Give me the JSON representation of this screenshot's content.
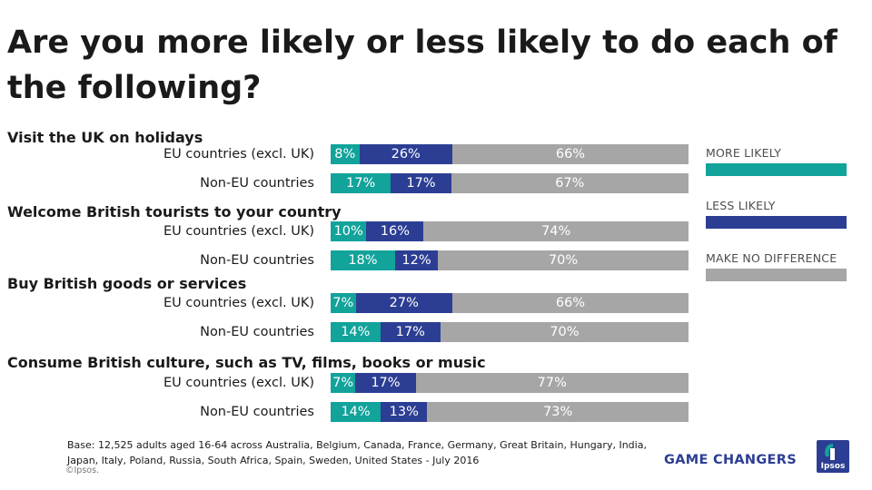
{
  "title": "Are you more likely or less likely to do each of the following?",
  "colors": {
    "more_likely": "#12a39b",
    "less_likely": "#2c3e93",
    "no_difference": "#a6a6a6"
  },
  "chart_data": {
    "type": "bar",
    "orientation": "horizontal",
    "stacked": true,
    "title": "Are you more likely or less likely to do each of the following?",
    "series": [
      {
        "name": "MORE LIKELY",
        "values": [
          8,
          17,
          10,
          18,
          7,
          14,
          7,
          14
        ]
      },
      {
        "name": "LESS LIKELY",
        "values": [
          26,
          17,
          16,
          12,
          27,
          17,
          17,
          13
        ]
      },
      {
        "name": "MAKE NO DIFFERENCE",
        "values": [
          66,
          67,
          74,
          70,
          66,
          70,
          77,
          73
        ]
      }
    ],
    "legend_position": "right",
    "groups": [
      {
        "title": "Visit the UK on holidays",
        "rows": [
          {
            "label": "EU countries (excl. UK)",
            "more": 8,
            "less": 26,
            "none": 66
          },
          {
            "label": "Non-EU countries",
            "more": 17,
            "less": 17,
            "none": 67
          }
        ]
      },
      {
        "title": "Welcome British tourists to your country",
        "rows": [
          {
            "label": "EU countries (excl. UK)",
            "more": 10,
            "less": 16,
            "none": 74
          },
          {
            "label": "Non-EU countries",
            "more": 18,
            "less": 12,
            "none": 70
          }
        ]
      },
      {
        "title": "Buy British goods or services",
        "rows": [
          {
            "label": "EU countries (excl. UK)",
            "more": 7,
            "less": 27,
            "none": 66
          },
          {
            "label": "Non-EU countries",
            "more": 14,
            "less": 17,
            "none": 70
          }
        ]
      },
      {
        "title": "Consume British culture, such as TV, films, books or music",
        "rows": [
          {
            "label": "EU countries (excl. UK)",
            "more": 7,
            "less": 17,
            "none": 77
          },
          {
            "label": "Non-EU countries",
            "more": 14,
            "less": 13,
            "none": 73
          }
        ]
      }
    ]
  },
  "legend": {
    "more_likely": "MORE LIKELY",
    "less_likely": "LESS LIKELY",
    "no_difference": "MAKE NO DIFFERENCE"
  },
  "footnote": "Base: 12,525 adults aged 16-64 across  Australia, Belgium, Canada, France, Germany, Great Britain, Hungary, India, Japan, Italy, Poland, Russia, South Africa, Spain, Sweden, United States - July 2016",
  "copyright": "©Ipsos.",
  "brand": "GAME CHANGERS",
  "logo_text": "Ipsos"
}
